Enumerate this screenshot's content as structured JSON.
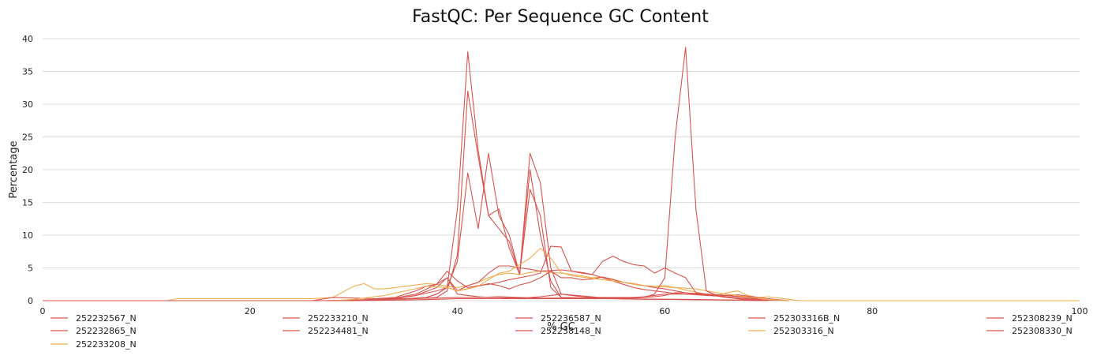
{
  "chart_data": {
    "type": "line",
    "title": "FastQC: Per Sequence GC Content",
    "xlabel": "% GC",
    "ylabel": "Percentage",
    "xlim": [
      0,
      100
    ],
    "ylim": [
      0,
      40
    ],
    "xticks": [
      0,
      20,
      40,
      60,
      80,
      100
    ],
    "yticks": [
      0,
      5,
      10,
      15,
      20,
      25,
      30,
      35,
      40
    ],
    "grid": "horizontal",
    "legend_position": "bottom",
    "colors": {
      "red": "#d9534f",
      "orange": "#f0ad4e"
    },
    "series": [
      {
        "name": "252232567_N",
        "color": "#d9534f",
        "x": [
          0,
          27,
          30,
          34,
          36,
          38,
          39,
          40,
          41,
          42,
          43,
          44,
          45,
          46,
          47,
          48,
          49,
          50,
          55,
          58,
          62,
          66,
          68,
          70,
          72
        ],
        "y": [
          0,
          0,
          0.1,
          0.2,
          0.3,
          0.5,
          1.5,
          7,
          32,
          22,
          13,
          11,
          9,
          4,
          20,
          10,
          3,
          0.5,
          0.3,
          0.2,
          0.2,
          0.1,
          0.1,
          0.1,
          0
        ]
      },
      {
        "name": "252232865_N",
        "color": "#d9534f",
        "x": [
          0,
          28,
          32,
          35,
          37,
          38,
          39,
          40,
          41,
          42,
          43,
          44,
          45,
          46,
          47,
          48,
          49,
          50,
          55,
          60,
          66,
          70
        ],
        "y": [
          0,
          0,
          0.1,
          0.3,
          0.5,
          1,
          2,
          6,
          19.5,
          11,
          22.5,
          13,
          10,
          4,
          22.5,
          18,
          5,
          1,
          0.3,
          0.2,
          0.1,
          0
        ],
        "w": 0
      },
      {
        "name": "252233208_N",
        "color": "#f0ad4e",
        "x": [
          0,
          12,
          13,
          20,
          26,
          28,
          30,
          31,
          32,
          33,
          34,
          35,
          36,
          37,
          38,
          39,
          40,
          41,
          42,
          43,
          44,
          45,
          46,
          47,
          48,
          49,
          50,
          51,
          52,
          53,
          54,
          55,
          56,
          57,
          58,
          59,
          60,
          61,
          62,
          63,
          64,
          65,
          66,
          67,
          68,
          69,
          70,
          71,
          72,
          73,
          100
        ],
        "y": [
          0,
          0,
          0.3,
          0.3,
          0.3,
          0.5,
          2.2,
          2.6,
          1.8,
          1.8,
          2,
          2.2,
          2.4,
          2.6,
          2.5,
          2.2,
          2,
          2.3,
          2.8,
          3.5,
          4,
          4.2,
          4,
          4.3,
          4.5,
          4.3,
          4.2,
          4,
          3.8,
          3.5,
          3.6,
          3.3,
          2.8,
          2.5,
          2.3,
          2.2,
          2.3,
          2,
          1.6,
          1.3,
          1,
          0.8,
          1.2,
          1.5,
          0.8,
          0.5,
          0.6,
          0.4,
          0.2,
          0,
          0
        ]
      },
      {
        "name": "252233210_N",
        "color": "#d9534f",
        "x": [
          0,
          26,
          28,
          30,
          32,
          34,
          35,
          36,
          37,
          38,
          39,
          40,
          41,
          42,
          43,
          44,
          45,
          46,
          47,
          48,
          49,
          50,
          51,
          52,
          53,
          54,
          55,
          56,
          57,
          58,
          59,
          60,
          61,
          62,
          63,
          64,
          65,
          66,
          67,
          68,
          69,
          70,
          72
        ],
        "y": [
          0,
          0,
          0.5,
          0.4,
          0.3,
          0.5,
          1,
          1.5,
          2.2,
          2.5,
          3.5,
          1.5,
          1.8,
          2.2,
          2.6,
          2.3,
          1.8,
          2.4,
          2.8,
          3.5,
          4.5,
          3.5,
          3.5,
          3.2,
          3.3,
          3.6,
          3.2,
          2.8,
          2.6,
          2.3,
          2,
          1.8,
          1.5,
          1.2,
          1,
          0.9,
          0.8,
          0.8,
          0.9,
          0.7,
          0.5,
          0.3,
          0
        ]
      },
      {
        "name": "252234481_N",
        "color": "#d9534f",
        "x": [
          0,
          28,
          32,
          35,
          37,
          38,
          39,
          40,
          41,
          42,
          43,
          44,
          45,
          46,
          47,
          48,
          49,
          50,
          55,
          60,
          66,
          70
        ],
        "y": [
          0,
          0,
          0.2,
          0.3,
          0.5,
          1,
          2,
          14,
          38,
          23,
          13,
          14,
          8,
          4,
          17,
          13,
          2,
          0.5,
          0.3,
          0.2,
          0.1,
          0
        ]
      },
      {
        "name": "252236587_N",
        "color": "#d9534f",
        "x": [
          0,
          30,
          34,
          36,
          38,
          39,
          40,
          41,
          42,
          43,
          44,
          45,
          46,
          47,
          48,
          49,
          50,
          51,
          52,
          53,
          54,
          55,
          56,
          57,
          58,
          59,
          60,
          61,
          62,
          63,
          64,
          65,
          66,
          68,
          70
        ],
        "y": [
          0,
          0,
          0.3,
          0.8,
          1.5,
          2,
          1.5,
          2.3,
          2.8,
          4.2,
          5.3,
          5.3,
          5,
          4.8,
          4.5,
          4.6,
          4.7,
          4.5,
          4.2,
          4,
          3.5,
          3,
          2.5,
          2,
          1.7,
          1.5,
          1.3,
          1.1,
          1,
          0.9,
          0.8,
          0.7,
          0.5,
          0.3,
          0
        ]
      },
      {
        "name": "252238148_N",
        "color": "#d9534f",
        "x": [
          0,
          30,
          34,
          36,
          38,
          39,
          40,
          41,
          42,
          43,
          44,
          45,
          46,
          47,
          48,
          49,
          50,
          51,
          52,
          53,
          54,
          55,
          56,
          57,
          58,
          59,
          60,
          61,
          62,
          63,
          64,
          65,
          66,
          68,
          70
        ],
        "y": [
          0,
          0,
          0.4,
          1,
          2.5,
          4.5,
          3,
          2,
          2.3,
          2.5,
          2.8,
          3.2,
          3.5,
          3.8,
          4.2,
          8.3,
          8.2,
          4.5,
          4.3,
          4,
          6,
          6.8,
          6,
          5.5,
          5.3,
          4.2,
          5,
          4.2,
          3.5,
          1.2,
          1,
          0.9,
          0.8,
          0.5,
          0
        ]
      },
      {
        "name": "252303316B_N",
        "color": "#d9534f",
        "x": [
          0,
          30,
          34,
          36,
          38,
          39,
          40,
          41,
          42,
          43,
          44,
          45,
          46,
          47,
          48,
          49,
          50,
          51,
          52,
          53,
          54,
          55,
          56,
          57,
          58,
          59,
          60,
          61,
          62,
          63,
          64,
          65,
          66,
          67,
          68,
          70
        ],
        "y": [
          0,
          0,
          0.3,
          0.8,
          2,
          3.5,
          1,
          0.8,
          0.6,
          0.5,
          0.5,
          0.4,
          0.4,
          0.5,
          0.6,
          0.8,
          1,
          0.8,
          0.6,
          0.5,
          0.5,
          0.4,
          0.4,
          0.5,
          0.6,
          0.8,
          1,
          1,
          1,
          1,
          1,
          0.9,
          0.8,
          0.6,
          0.5,
          0
        ]
      },
      {
        "name": "252303316_N",
        "color": "#f0ad4e",
        "x": [
          0,
          28,
          30,
          33,
          35,
          37,
          39,
          40,
          41,
          42,
          43,
          44,
          45,
          46,
          47,
          48,
          49,
          50,
          51,
          52,
          53,
          54,
          55,
          56,
          57,
          58,
          59,
          60,
          61,
          62,
          63,
          64,
          65,
          66,
          67,
          68,
          69,
          70,
          72
        ],
        "y": [
          0,
          0,
          0.2,
          0.8,
          1.5,
          2.2,
          2,
          1.5,
          1.8,
          2.2,
          3.2,
          4.2,
          4.5,
          5.5,
          6.5,
          8,
          6.5,
          4.3,
          3.8,
          3.6,
          3.4,
          3.2,
          3,
          2.8,
          2.6,
          2.3,
          2.2,
          2.1,
          2,
          1.9,
          1.8,
          1.5,
          1.2,
          1,
          0.8,
          0.6,
          0.4,
          0.2,
          0
        ]
      },
      {
        "name": "252308239_N",
        "color": "#d9534f",
        "x": [
          0,
          30,
          35,
          38,
          40,
          42,
          44,
          46,
          48,
          50,
          52,
          54,
          56,
          58,
          59,
          60,
          61,
          62,
          63,
          64,
          65,
          66,
          67,
          68,
          70
        ],
        "y": [
          0,
          0,
          0.1,
          0.2,
          0.3,
          0.3,
          0.3,
          0.3,
          0.3,
          0.3,
          0.3,
          0.3,
          0.3,
          0.5,
          1,
          3.5,
          25,
          38.7,
          14,
          1.5,
          0.8,
          0.5,
          0.3,
          0.1,
          0
        ]
      },
      {
        "name": "252308330_N",
        "color": "#d9534f",
        "x": [
          0,
          30,
          35,
          38,
          40,
          42,
          44,
          46,
          48,
          50,
          52,
          54,
          56,
          58,
          59,
          60,
          61,
          62,
          63,
          64,
          65,
          66,
          67,
          68,
          70
        ],
        "y": [
          0,
          0,
          0.3,
          0.4,
          0.5,
          0.5,
          0.6,
          0.5,
          0.4,
          0.4,
          0.4,
          0.5,
          0.5,
          0.5,
          0.6,
          0.8,
          1.2,
          1.2,
          1.1,
          1,
          0.8,
          0.6,
          0.4,
          0.2,
          0
        ]
      }
    ]
  }
}
